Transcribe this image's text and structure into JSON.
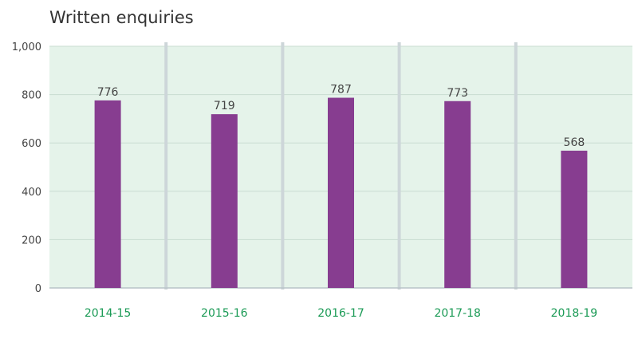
{
  "chart_data": {
    "type": "bar",
    "title": "Written enquiries",
    "xlabel": "",
    "ylabel": "",
    "categories": [
      "2014-15",
      "2015-16",
      "2016-17",
      "2017-18",
      "2018-19"
    ],
    "values": [
      776,
      719,
      787,
      773,
      568
    ],
    "data_labels": [
      "776",
      "719",
      "787",
      "773",
      "568"
    ],
    "y_ticks": [
      0,
      200,
      400,
      600,
      800,
      1000
    ],
    "y_tick_labels": [
      "0",
      "200",
      "400",
      "600",
      "800",
      "1,000"
    ],
    "ylim": [
      0,
      1000
    ],
    "grid": true,
    "legend": "none",
    "colors": {
      "bar": "#873d90",
      "plot_background": "#e5f3ea",
      "gridline": "#c9dcd1",
      "separator": "#cdd6d9",
      "category_label": "#1a9a55"
    }
  }
}
